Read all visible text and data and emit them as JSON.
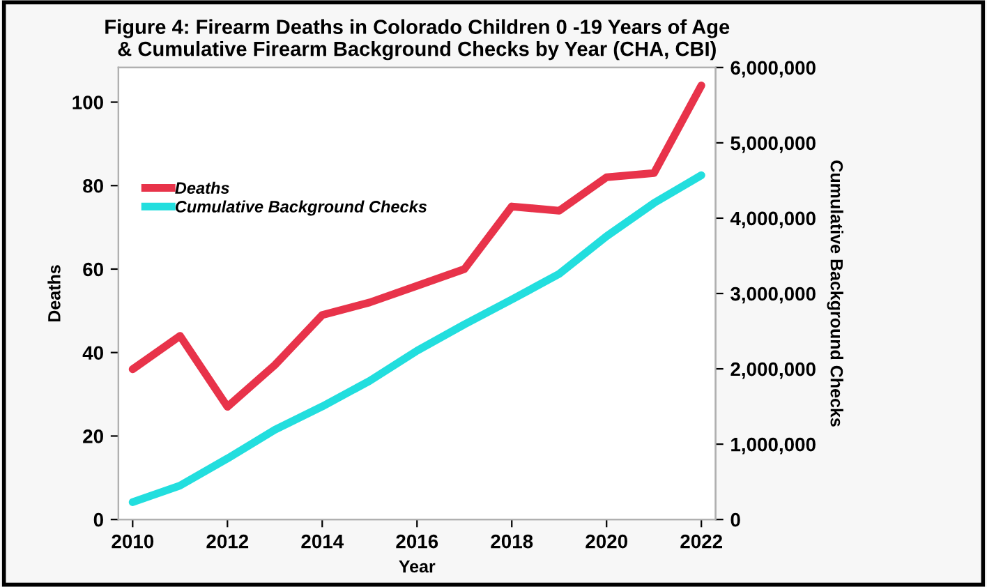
{
  "chart_data": {
    "type": "line",
    "title": "Figure 4: Firearm Deaths in Colorado Children 0 -19 Years of Age\n& Cumulative Firearm Background Checks by Year (CHA, CBI)",
    "xlabel": "Year",
    "ylabel": "Deaths",
    "y2label": "Cumulative Background Checks",
    "x": [
      2010,
      2011,
      2012,
      2013,
      2014,
      2015,
      2016,
      2017,
      2018,
      2019,
      2020,
      2021,
      2022
    ],
    "series": [
      {
        "name": "Deaths",
        "color": "#e8334a",
        "values": [
          36,
          44,
          27,
          37,
          49,
          52,
          56,
          60,
          75,
          74,
          82,
          83,
          104
        ]
      },
      {
        "name": "Cumulative Background Checks",
        "color": "#22dede",
        "axis": "y2",
        "values": [
          230000,
          450000,
          810000,
          1190000,
          1500000,
          1840000,
          2240000,
          2590000,
          2920000,
          3260000,
          3760000,
          4200000,
          4570000
        ]
      }
    ],
    "xlim": [
      2009.7,
      2022.3
    ],
    "xticks": [
      2010,
      2012,
      2014,
      2016,
      2018,
      2020,
      2022
    ],
    "ylim": [
      0,
      108.3
    ],
    "yticks": [
      0,
      20,
      40,
      60,
      80,
      100
    ],
    "y2lim": [
      0,
      6000000
    ],
    "y2ticks": [
      {
        "value": 0,
        "label": "0"
      },
      {
        "value": 1000000,
        "label": "1,000,000"
      },
      {
        "value": 2000000,
        "label": "2,000,000"
      },
      {
        "value": 3000000,
        "label": "3,000,000"
      },
      {
        "value": 4000000,
        "label": "4,000,000"
      },
      {
        "value": 5000000,
        "label": "5,000,000"
      },
      {
        "value": 6000000,
        "label": "6,000,000"
      }
    ],
    "legend": "top left",
    "grid": false,
    "marker": "none",
    "line_style": "solid"
  }
}
